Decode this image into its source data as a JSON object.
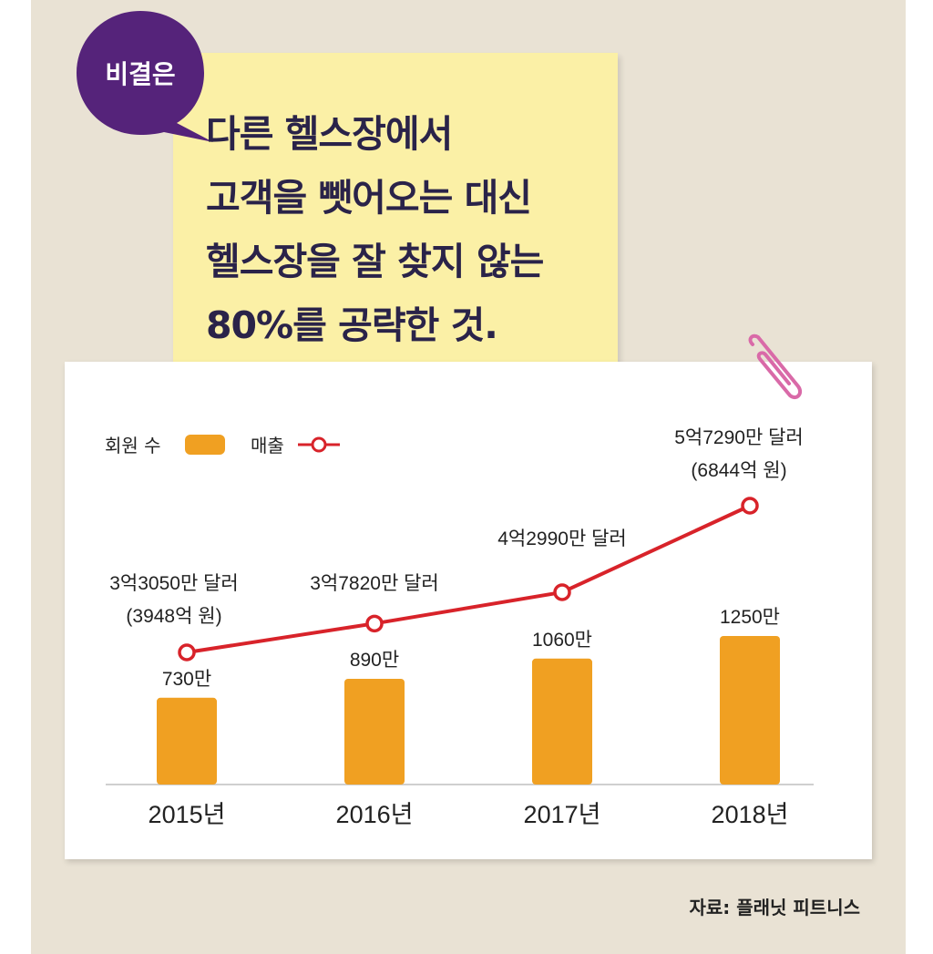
{
  "badge": "비결은",
  "note_lines": [
    "다른 헬스장에서",
    "고객을 뺏어오는 대신",
    "헬스장을 잘 찾지 않는",
    "80%를 공략한 것."
  ],
  "legend": {
    "members_label": "회원 수",
    "revenue_label": "매출"
  },
  "colors": {
    "bar": "#f0a022",
    "line": "#d8232a",
    "badge": "#55237a",
    "note": "#fbf0a6",
    "text": "#2a2349"
  },
  "source": "자료: 플래닛 피트니스",
  "chart_data": {
    "type": "bar",
    "categories": [
      "2015년",
      "2016년",
      "2017년",
      "2018년"
    ],
    "series": [
      {
        "name": "회원 수",
        "type": "bar",
        "values": [
          730,
          890,
          1060,
          1250
        ],
        "labels": [
          "730만",
          "890만",
          "1060만",
          "1250만"
        ]
      },
      {
        "name": "매출",
        "type": "line",
        "values": [
          33050,
          37820,
          42990,
          57290
        ],
        "labels": [
          [
            "3억3050만 달러",
            "(3948억 원)"
          ],
          [
            "3억7820만 달러"
          ],
          [
            "4억2990만 달러"
          ],
          [
            "5억7290만 달러",
            "(6844억 원)"
          ]
        ]
      }
    ]
  }
}
